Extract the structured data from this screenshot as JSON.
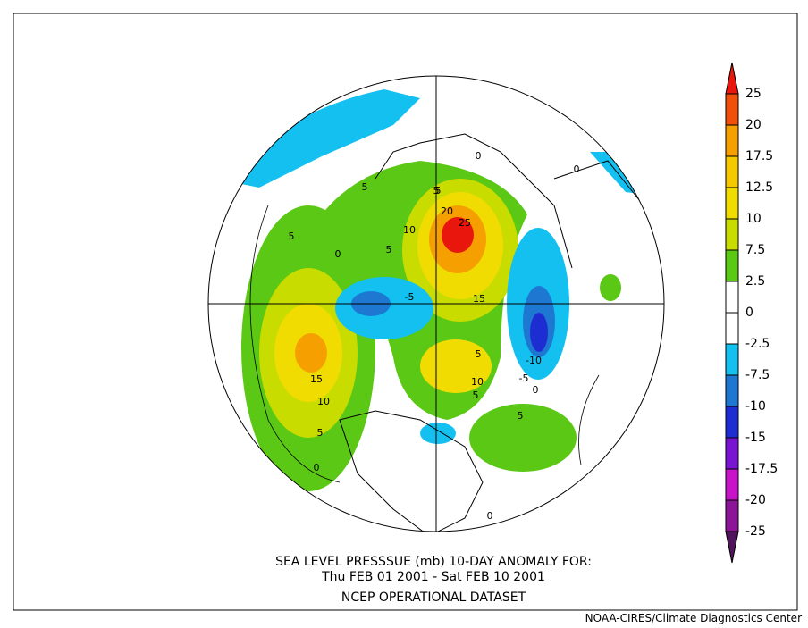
{
  "caption": {
    "line1": "SEA LEVEL PRESSSUE (mb)   10-DAY ANOMALY FOR:",
    "line2": "Thu FEB 01 2001 - Sat FEB 10 2001",
    "line3": "NCEP OPERATIONAL DATASET"
  },
  "credit": "NOAA-CIRES/Climate Diagnostics Center",
  "colorbar": {
    "labels": [
      "25",
      "20",
      "17.5",
      "12.5",
      "10",
      "7.5",
      "2.5",
      "0",
      "-2.5",
      "-7.5",
      "-10",
      "-15",
      "-17.5",
      "-20",
      "-25"
    ],
    "colors": [
      "#e8160c",
      "#f0500a",
      "#f5a000",
      "#f5c800",
      "#f0dc00",
      "#c8dc00",
      "#5ac814",
      "#ffffff",
      "#ffffff",
      "#14c0f0",
      "#1e78d2",
      "#1e2dd2",
      "#7814d2",
      "#c814c8",
      "#8c1496",
      "#50145a"
    ]
  },
  "contour_labels": [
    "5",
    "5",
    "0",
    "5",
    "10",
    "20",
    "25",
    "5",
    "-5",
    "15",
    "5",
    "15",
    "10",
    "5",
    "0",
    "5",
    "10",
    "5",
    "-10",
    "-5",
    "0",
    "5",
    "0",
    "0",
    "0"
  ]
}
